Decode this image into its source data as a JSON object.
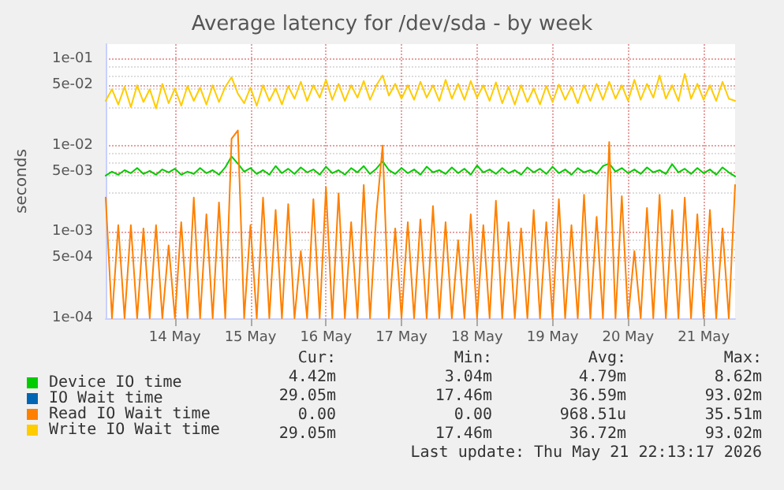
{
  "chart_data": {
    "type": "line",
    "title": "Average latency for /dev/sda - by week",
    "ylabel": "seconds",
    "x": [
      "2026-05-13T14:00",
      "2026-05-13T16:00",
      "2026-05-13T18:00",
      "2026-05-13T20:00",
      "2026-05-13T22:00",
      "2026-05-14T00:00",
      "2026-05-14T02:00",
      "2026-05-14T04:00",
      "2026-05-14T06:00",
      "2026-05-14T08:00",
      "2026-05-14T10:00",
      "2026-05-14T12:00",
      "2026-05-14T14:00",
      "2026-05-14T16:00",
      "2026-05-14T18:00",
      "2026-05-14T20:00",
      "2026-05-14T22:00",
      "2026-05-15T00:00",
      "2026-05-15T02:00",
      "2026-05-15T04:00",
      "2026-05-15T06:00",
      "2026-05-15T08:00",
      "2026-05-15T10:00",
      "2026-05-15T12:00",
      "2026-05-15T14:00",
      "2026-05-15T16:00",
      "2026-05-15T18:00",
      "2026-05-15T20:00",
      "2026-05-15T22:00",
      "2026-05-16T00:00",
      "2026-05-16T02:00",
      "2026-05-16T04:00",
      "2026-05-16T06:00",
      "2026-05-16T08:00",
      "2026-05-16T10:00",
      "2026-05-16T12:00",
      "2026-05-16T14:00",
      "2026-05-16T16:00",
      "2026-05-16T18:00",
      "2026-05-16T20:00",
      "2026-05-16T22:00",
      "2026-05-17T00:00",
      "2026-05-17T02:00",
      "2026-05-17T04:00",
      "2026-05-17T06:00",
      "2026-05-17T08:00",
      "2026-05-17T10:00",
      "2026-05-17T12:00",
      "2026-05-17T14:00",
      "2026-05-17T16:00",
      "2026-05-17T18:00",
      "2026-05-17T20:00",
      "2026-05-17T22:00",
      "2026-05-18T00:00",
      "2026-05-18T02:00",
      "2026-05-18T04:00",
      "2026-05-18T06:00",
      "2026-05-18T08:00",
      "2026-05-18T10:00",
      "2026-05-18T12:00",
      "2026-05-18T14:00",
      "2026-05-18T16:00",
      "2026-05-18T18:00",
      "2026-05-18T20:00",
      "2026-05-18T22:00",
      "2026-05-19T00:00",
      "2026-05-19T02:00",
      "2026-05-19T04:00",
      "2026-05-19T06:00",
      "2026-05-19T08:00",
      "2026-05-19T10:00",
      "2026-05-19T12:00",
      "2026-05-19T14:00",
      "2026-05-19T16:00",
      "2026-05-19T18:00",
      "2026-05-19T20:00",
      "2026-05-19T22:00",
      "2026-05-20T00:00",
      "2026-05-20T02:00",
      "2026-05-20T04:00",
      "2026-05-20T06:00",
      "2026-05-20T08:00",
      "2026-05-20T10:00",
      "2026-05-20T12:00",
      "2026-05-20T14:00",
      "2026-05-20T16:00",
      "2026-05-20T18:00",
      "2026-05-20T20:00",
      "2026-05-20T22:00",
      "2026-05-21T00:00",
      "2026-05-21T02:00",
      "2026-05-21T04:00",
      "2026-05-21T06:00",
      "2026-05-21T08:00",
      "2026-05-21T10:00",
      "2026-05-21T12:00",
      "2026-05-21T14:00",
      "2026-05-21T16:00",
      "2026-05-21T18:00",
      "2026-05-21T20:00",
      "2026-05-21T22:00"
    ],
    "series": [
      {
        "name": "Device IO time",
        "color": "#00cc00",
        "values": [
          0.0045,
          0.005,
          0.0046,
          0.0052,
          0.0048,
          0.0055,
          0.0047,
          0.0051,
          0.0046,
          0.0053,
          0.0049,
          0.0054,
          0.0046,
          0.005,
          0.0047,
          0.0055,
          0.0048,
          0.0052,
          0.0046,
          0.0056,
          0.0075,
          0.0062,
          0.005,
          0.0055,
          0.0047,
          0.0052,
          0.0046,
          0.0058,
          0.0048,
          0.0054,
          0.0047,
          0.0056,
          0.0049,
          0.0053,
          0.0046,
          0.0057,
          0.0048,
          0.0052,
          0.0046,
          0.0055,
          0.0049,
          0.0058,
          0.0047,
          0.0054,
          0.0066,
          0.0052,
          0.0047,
          0.0055,
          0.0048,
          0.0053,
          0.0046,
          0.0057,
          0.0049,
          0.0052,
          0.0047,
          0.0056,
          0.0048,
          0.0054,
          0.0046,
          0.0059,
          0.0049,
          0.0053,
          0.0047,
          0.0055,
          0.0048,
          0.0052,
          0.0046,
          0.0056,
          0.0049,
          0.0054,
          0.0047,
          0.0057,
          0.0048,
          0.0053,
          0.0046,
          0.0055,
          0.0049,
          0.0052,
          0.0047,
          0.0058,
          0.0062,
          0.005,
          0.0055,
          0.0048,
          0.0053,
          0.0047,
          0.0056,
          0.0049,
          0.0052,
          0.0047,
          0.0061,
          0.0049,
          0.0054,
          0.0047,
          0.0055,
          0.0048,
          0.0053,
          0.0046,
          0.0056,
          0.0049,
          0.0044
        ]
      },
      {
        "name": "IO Wait time",
        "color": "#0066b3",
        "values": [
          null,
          null,
          null,
          null,
          null,
          null,
          null,
          null,
          null,
          null,
          null,
          null,
          null,
          null,
          null,
          null,
          null,
          null,
          null,
          null,
          null,
          null,
          null,
          null,
          null,
          null,
          null,
          null,
          null,
          null,
          null,
          null,
          null,
          null,
          null,
          null,
          null,
          null,
          null,
          null,
          null,
          null,
          null,
          null,
          null,
          null,
          null,
          null,
          null,
          null,
          null,
          null,
          null,
          null,
          null,
          null,
          null,
          null,
          null,
          null,
          null,
          null,
          null,
          null,
          null,
          null,
          null,
          null,
          null,
          null,
          null,
          null,
          null,
          null,
          null,
          null,
          null,
          null,
          null,
          null,
          null,
          null,
          null,
          null,
          null,
          null,
          null,
          null,
          null,
          null,
          null,
          null,
          null,
          null,
          null,
          null,
          null,
          null,
          null,
          null,
          null
        ]
      },
      {
        "name": "Read IO Wait time",
        "color": "#ff8000",
        "values": [
          0.0025,
          0.0001,
          0.0012,
          0.0001,
          0.0012,
          0.0001,
          0.0011,
          0.0001,
          0.0012,
          0.0001,
          0.0007,
          0.0001,
          0.0013,
          0.0001,
          0.0025,
          0.0001,
          0.0016,
          0.0001,
          0.0022,
          0.0001,
          0.012,
          0.015,
          0.0001,
          0.0012,
          0.0001,
          0.0025,
          0.0001,
          0.0018,
          0.0001,
          0.0021,
          0.0001,
          0.0006,
          0.0001,
          0.0024,
          0.0001,
          0.0033,
          0.0001,
          0.0028,
          0.0001,
          0.0013,
          0.0001,
          0.0035,
          0.0001,
          0.0016,
          0.01,
          0.0001,
          0.0011,
          0.0001,
          0.0013,
          0.0001,
          0.0014,
          0.0001,
          0.002,
          0.0001,
          0.0013,
          0.0001,
          0.0008,
          0.0001,
          0.0016,
          0.0001,
          0.0012,
          0.0001,
          0.0023,
          0.0001,
          0.0013,
          0.0001,
          0.0011,
          0.0001,
          0.0018,
          0.0001,
          0.0013,
          0.0001,
          0.0024,
          0.0001,
          0.0012,
          0.0001,
          0.0027,
          0.0001,
          0.0015,
          0.0001,
          0.011,
          0.0001,
          0.0026,
          0.0001,
          0.0006,
          0.0001,
          0.0019,
          0.0001,
          0.0027,
          0.0001,
          0.0018,
          0.0001,
          0.0025,
          0.0001,
          0.0016,
          0.0001,
          0.0018,
          0.0001,
          0.0011,
          0.0001,
          0.0035
        ]
      },
      {
        "name": "Write IO Wait time",
        "color": "#ffcc00",
        "values": [
          0.033,
          0.045,
          0.03,
          0.048,
          0.028,
          0.05,
          0.032,
          0.045,
          0.027,
          0.052,
          0.031,
          0.046,
          0.029,
          0.049,
          0.033,
          0.047,
          0.03,
          0.05,
          0.032,
          0.048,
          0.062,
          0.04,
          0.031,
          0.047,
          0.029,
          0.05,
          0.033,
          0.046,
          0.03,
          0.049,
          0.035,
          0.055,
          0.033,
          0.05,
          0.036,
          0.058,
          0.034,
          0.052,
          0.033,
          0.05,
          0.036,
          0.056,
          0.034,
          0.05,
          0.065,
          0.038,
          0.052,
          0.035,
          0.05,
          0.034,
          0.055,
          0.036,
          0.05,
          0.033,
          0.058,
          0.035,
          0.052,
          0.034,
          0.056,
          0.036,
          0.05,
          0.033,
          0.054,
          0.031,
          0.048,
          0.03,
          0.05,
          0.032,
          0.046,
          0.03,
          0.049,
          0.032,
          0.051,
          0.034,
          0.048,
          0.031,
          0.05,
          0.033,
          0.052,
          0.034,
          0.055,
          0.035,
          0.05,
          0.033,
          0.058,
          0.034,
          0.052,
          0.036,
          0.065,
          0.035,
          0.05,
          0.033,
          0.068,
          0.035,
          0.052,
          0.034,
          0.05,
          0.033,
          0.055,
          0.035,
          0.033
        ]
      }
    ],
    "xlim": [
      "2026-05-13T14:00",
      "2026-05-21T22:00"
    ],
    "xticks": [
      {
        "value": "2026-05-14T12:00",
        "label": "14 May"
      },
      {
        "value": "2026-05-15T12:00",
        "label": "15 May"
      },
      {
        "value": "2026-05-16T12:00",
        "label": "16 May"
      },
      {
        "value": "2026-05-17T12:00",
        "label": "17 May"
      },
      {
        "value": "2026-05-18T12:00",
        "label": "18 May"
      },
      {
        "value": "2026-05-19T12:00",
        "label": "19 May"
      },
      {
        "value": "2026-05-20T12:00",
        "label": "20 May"
      },
      {
        "value": "2026-05-21T12:00",
        "label": "21 May"
      }
    ],
    "ylim": [
      0.0001,
      0.15
    ],
    "yticks": [
      {
        "value": 0.0001,
        "label": "1e-04"
      },
      {
        "value": 0.0005,
        "label": "5e-04"
      },
      {
        "value": 0.001,
        "label": "1e-03"
      },
      {
        "value": 0.005,
        "label": "5e-03"
      },
      {
        "value": 0.01,
        "label": "1e-02"
      },
      {
        "value": 0.05,
        "label": "5e-02"
      },
      {
        "value": 0.1,
        "label": "1e-01"
      }
    ],
    "log": true,
    "grid": true,
    "legend": "bottom",
    "marker": "none",
    "line_style": "solid",
    "annotations": [
      "Cur:",
      "Min:",
      "Avg:",
      "Max:",
      "4.42m",
      "3.04m",
      "4.79m",
      "8.62m",
      "29.05m",
      "17.46m",
      "36.59m",
      "93.02m",
      "0.00",
      "0.00",
      "968.51u",
      "35.51m",
      "29.05m",
      "17.46m",
      "36.72m",
      "93.02m",
      "Last update: Thu May 21 22:13:17 2026"
    ]
  }
}
